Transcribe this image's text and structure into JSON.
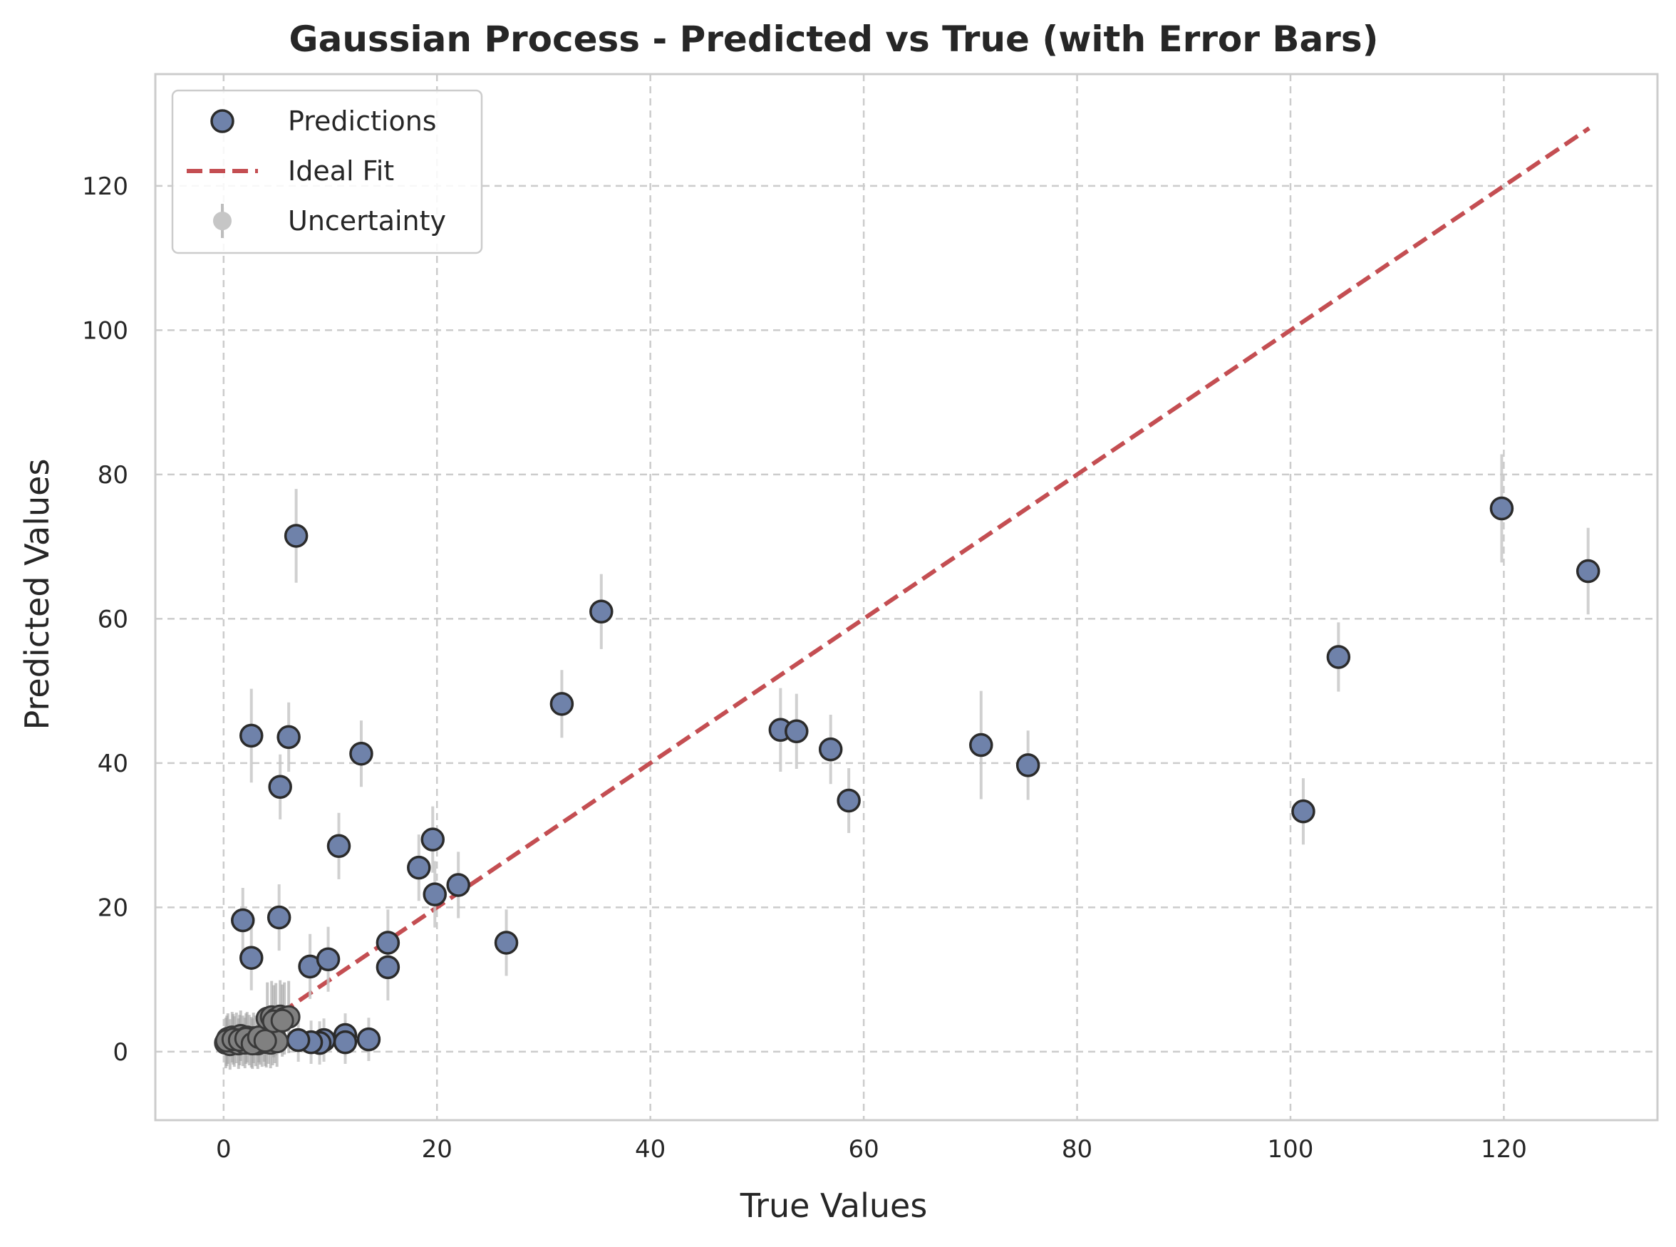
{
  "chart_data": {
    "type": "scatter",
    "title": "Gaussian Process - Predicted vs True (with Error Bars)",
    "xlabel": "True Values",
    "ylabel": "Predicted Values",
    "xlim": [
      -6.4,
      134.4
    ],
    "ylim": [
      -9.5,
      135.5
    ],
    "xticks": [
      0,
      20,
      40,
      60,
      80,
      100,
      120
    ],
    "yticks": [
      0,
      20,
      40,
      60,
      80,
      100,
      120
    ],
    "grid": true,
    "legend_position": "top-left",
    "legend": [
      {
        "label": "Predictions",
        "marker": "circle",
        "color": "#6f82aa"
      },
      {
        "label": "Ideal Fit",
        "marker": "dashed-line",
        "color": "#c44e52"
      },
      {
        "label": "Uncertainty",
        "marker": "circle",
        "color": "#808080"
      }
    ],
    "ideal_fit": {
      "x": [
        0,
        128
      ],
      "y": [
        0,
        128
      ],
      "color": "#c44e52"
    },
    "series": [
      {
        "name": "Predictions",
        "color": "#6f82aa",
        "points": [
          {
            "x": 6.8,
            "y": 71.5,
            "err": 6.5
          },
          {
            "x": 2.6,
            "y": 43.8,
            "err": 6.5
          },
          {
            "x": 6.1,
            "y": 43.6,
            "err": 4.8
          },
          {
            "x": 5.3,
            "y": 36.7,
            "err": 4.5
          },
          {
            "x": 12.9,
            "y": 41.3,
            "err": 4.6
          },
          {
            "x": 10.8,
            "y": 28.5,
            "err": 4.6
          },
          {
            "x": 1.8,
            "y": 18.2,
            "err": 4.5
          },
          {
            "x": 5.2,
            "y": 18.6,
            "err": 4.6
          },
          {
            "x": 2.6,
            "y": 13.0,
            "err": 4.5
          },
          {
            "x": 8.1,
            "y": 11.8,
            "err": 4.5
          },
          {
            "x": 9.8,
            "y": 12.8,
            "err": 4.5
          },
          {
            "x": 15.4,
            "y": 15.1,
            "err": 4.6
          },
          {
            "x": 15.4,
            "y": 11.7,
            "err": 4.6
          },
          {
            "x": 18.3,
            "y": 25.5,
            "err": 4.6
          },
          {
            "x": 19.6,
            "y": 29.4,
            "err": 4.6
          },
          {
            "x": 19.8,
            "y": 21.8,
            "err": 4.6
          },
          {
            "x": 22.0,
            "y": 23.1,
            "err": 4.6
          },
          {
            "x": 26.5,
            "y": 15.1,
            "err": 4.6
          },
          {
            "x": 31.7,
            "y": 48.2,
            "err": 4.7
          },
          {
            "x": 35.4,
            "y": 61.0,
            "err": 5.2
          },
          {
            "x": 52.2,
            "y": 44.6,
            "err": 5.8
          },
          {
            "x": 53.7,
            "y": 44.4,
            "err": 5.2
          },
          {
            "x": 56.9,
            "y": 41.9,
            "err": 4.8
          },
          {
            "x": 58.6,
            "y": 34.8,
            "err": 4.5
          },
          {
            "x": 71.0,
            "y": 42.5,
            "err": 7.5
          },
          {
            "x": 75.4,
            "y": 39.7,
            "err": 4.8
          },
          {
            "x": 101.2,
            "y": 33.3,
            "err": 4.6
          },
          {
            "x": 104.5,
            "y": 54.7,
            "err": 4.8
          },
          {
            "x": 119.8,
            "y": 75.3,
            "err": 7.5
          },
          {
            "x": 127.9,
            "y": 66.6,
            "err": 6.0
          },
          {
            "x": 11.4,
            "y": 2.3,
            "err": 3.0
          },
          {
            "x": 11.4,
            "y": 1.3,
            "err": 3.0
          },
          {
            "x": 13.6,
            "y": 1.7,
            "err": 3.0
          },
          {
            "x": 9.4,
            "y": 1.6,
            "err": 3.0
          },
          {
            "x": 9.0,
            "y": 1.2,
            "err": 3.0
          },
          {
            "x": 8.2,
            "y": 1.3,
            "err": 3.0
          },
          {
            "x": 7.0,
            "y": 1.6,
            "err": 3.0
          }
        ]
      },
      {
        "name": "Uncertainty",
        "color": "#808080",
        "points": [
          {
            "x": 0.2,
            "y": 1.2,
            "err": 3.5
          },
          {
            "x": 0.4,
            "y": 1.8,
            "err": 3.5
          },
          {
            "x": 0.6,
            "y": 1.0,
            "err": 3.5
          },
          {
            "x": 0.8,
            "y": 2.0,
            "err": 3.5
          },
          {
            "x": 1.0,
            "y": 1.4,
            "err": 3.5
          },
          {
            "x": 1.2,
            "y": 1.9,
            "err": 3.5
          },
          {
            "x": 1.4,
            "y": 1.1,
            "err": 3.5
          },
          {
            "x": 1.6,
            "y": 2.2,
            "err": 3.5
          },
          {
            "x": 1.8,
            "y": 1.5,
            "err": 3.5
          },
          {
            "x": 2.0,
            "y": 1.2,
            "err": 3.5
          },
          {
            "x": 2.2,
            "y": 2.0,
            "err": 3.5
          },
          {
            "x": 2.4,
            "y": 1.6,
            "err": 3.5
          },
          {
            "x": 2.6,
            "y": 1.3,
            "err": 3.5
          },
          {
            "x": 2.8,
            "y": 1.9,
            "err": 3.5
          },
          {
            "x": 3.0,
            "y": 1.5,
            "err": 3.5
          },
          {
            "x": 3.2,
            "y": 1.1,
            "err": 3.5
          },
          {
            "x": 3.4,
            "y": 1.7,
            "err": 3.5
          },
          {
            "x": 3.6,
            "y": 1.4,
            "err": 3.5
          },
          {
            "x": 3.8,
            "y": 2.1,
            "err": 3.5
          },
          {
            "x": 4.0,
            "y": 1.3,
            "err": 3.5
          },
          {
            "x": 4.2,
            "y": 1.8,
            "err": 3.5
          },
          {
            "x": 4.4,
            "y": 1.2,
            "err": 3.5
          },
          {
            "x": 4.6,
            "y": 1.6,
            "err": 3.5
          },
          {
            "x": 4.8,
            "y": 1.9,
            "err": 3.5
          },
          {
            "x": 5.0,
            "y": 1.4,
            "err": 3.5
          },
          {
            "x": 0.3,
            "y": 1.5,
            "err": 3.5
          },
          {
            "x": 0.9,
            "y": 1.7,
            "err": 3.5
          },
          {
            "x": 1.5,
            "y": 1.6,
            "err": 3.5
          },
          {
            "x": 2.1,
            "y": 1.8,
            "err": 3.5
          },
          {
            "x": 2.7,
            "y": 1.1,
            "err": 3.5
          },
          {
            "x": 3.3,
            "y": 2.0,
            "err": 3.5
          },
          {
            "x": 3.9,
            "y": 1.5,
            "err": 3.5
          },
          {
            "x": 4.1,
            "y": 4.6,
            "err": 5.0
          },
          {
            "x": 4.5,
            "y": 4.8,
            "err": 5.0
          },
          {
            "x": 4.9,
            "y": 4.5,
            "err": 5.0
          },
          {
            "x": 5.3,
            "y": 4.9,
            "err": 5.0
          },
          {
            "x": 5.7,
            "y": 4.6,
            "err": 5.0
          },
          {
            "x": 6.1,
            "y": 4.8,
            "err": 5.0
          },
          {
            "x": 4.7,
            "y": 4.2,
            "err": 5.0
          },
          {
            "x": 5.5,
            "y": 4.3,
            "err": 5.0
          }
        ]
      }
    ]
  }
}
